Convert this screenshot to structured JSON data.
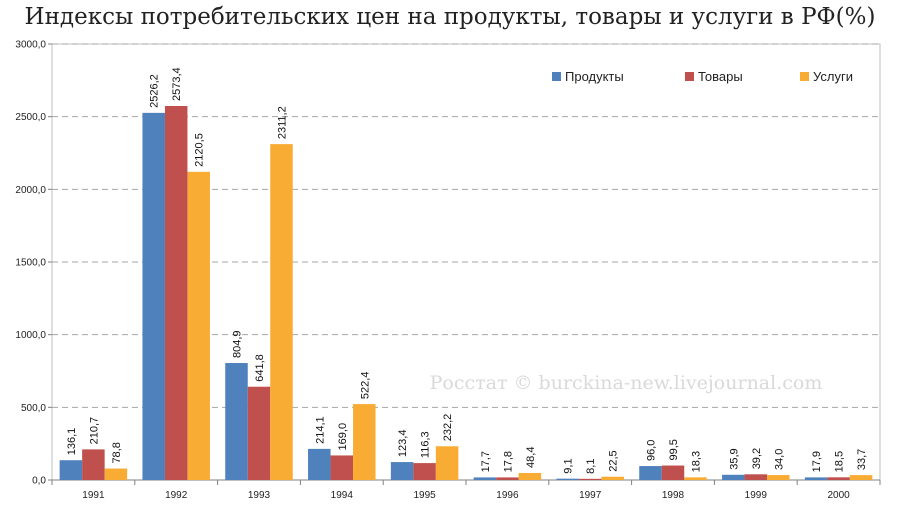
{
  "watermark": "Росстат © burckina-new.livejournal.com",
  "chart_data": {
    "type": "bar",
    "title": "Индексы потребительских цен на продукты, товары и услуги в РФ(%)",
    "categories": [
      "1991",
      "1992",
      "1993",
      "1994",
      "1995",
      "1996",
      "1997",
      "1998",
      "1999",
      "2000"
    ],
    "series": [
      {
        "name": "Продукты",
        "color": "#4F81BD",
        "values": [
          136.1,
          2526.2,
          804.9,
          214.1,
          123.4,
          17.7,
          9.1,
          96.0,
          35.9,
          17.9
        ],
        "labels": [
          "136,1",
          "2526,2",
          "804,9",
          "214,1",
          "123,4",
          "17,7",
          "9,1",
          "96,0",
          "35,9",
          "17,9"
        ]
      },
      {
        "name": "Товары",
        "color": "#C0504D",
        "values": [
          210.7,
          2573.4,
          641.8,
          169.0,
          116.3,
          17.8,
          8.1,
          99.5,
          39.2,
          18.5
        ],
        "labels": [
          "210,7",
          "2573,4",
          "641,8",
          "169,0",
          "116,3",
          "17,8",
          "8,1",
          "99,5",
          "39,2",
          "18,5"
        ]
      },
      {
        "name": "Услуги",
        "color": "#F9AC34",
        "values": [
          78.8,
          2120.5,
          2311.2,
          522.4,
          232.2,
          48.4,
          22.5,
          18.3,
          34.0,
          33.7
        ],
        "labels": [
          "78,8",
          "2120,5",
          "2311,2",
          "522,4",
          "232,2",
          "48,4",
          "22,5",
          "18,3",
          "34,0",
          "33,7"
        ]
      }
    ],
    "ylim": [
      0,
      3000
    ],
    "yticks": [
      "0,0",
      "500,0",
      "1000,0",
      "1500,0",
      "2000,0",
      "2500,0",
      "3000,0"
    ],
    "grid": true,
    "legend": "top-right"
  }
}
